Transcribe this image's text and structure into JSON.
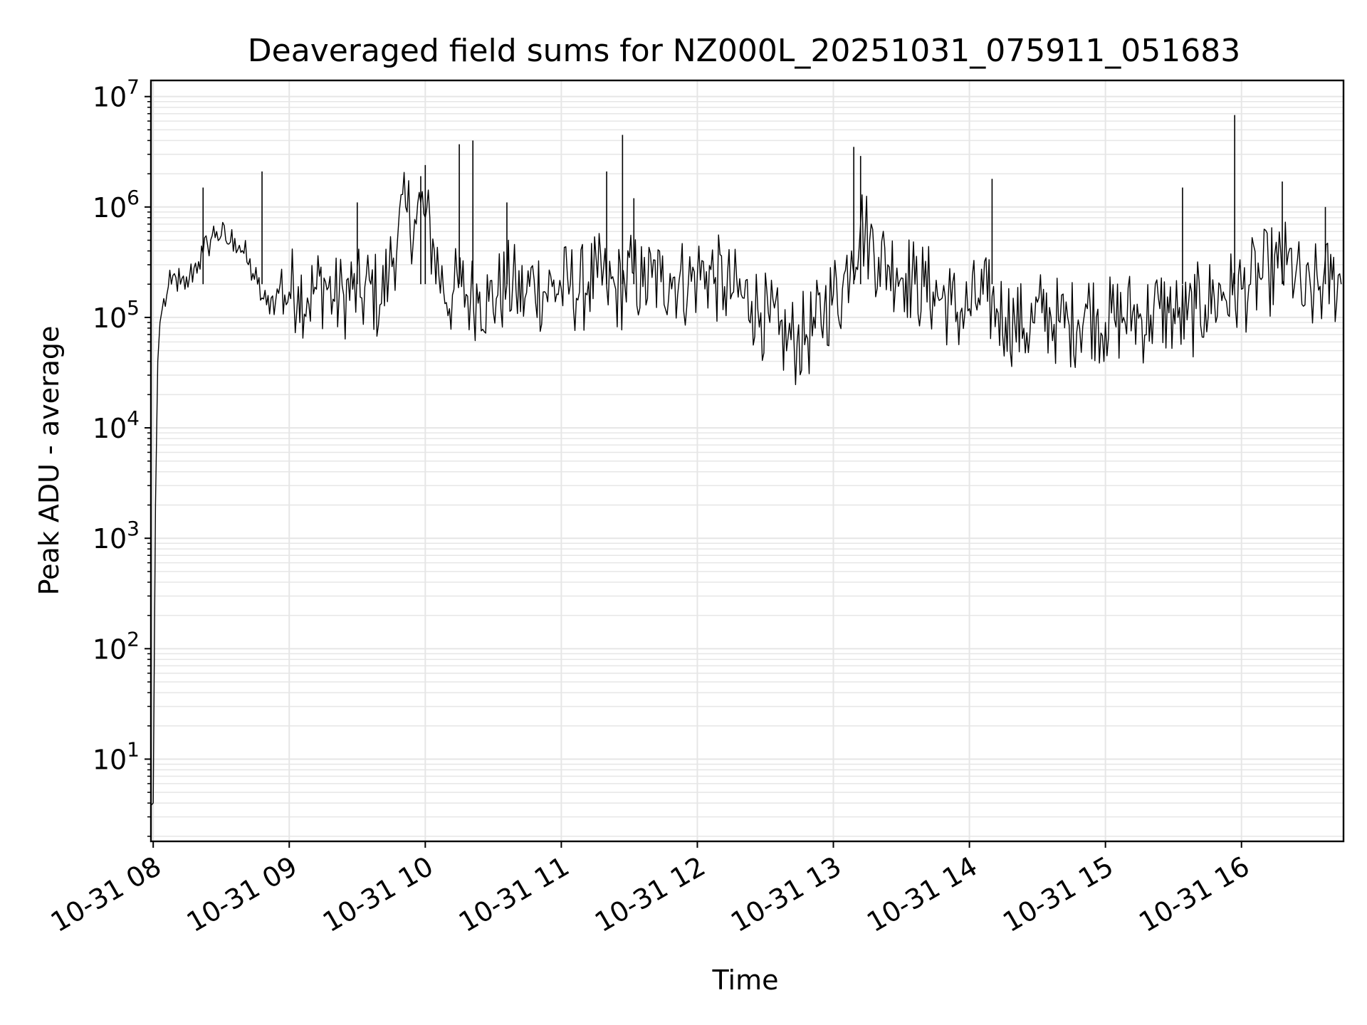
{
  "chart_data": {
    "type": "line",
    "title": "Deaveraged field sums for NZ000L_20251031_075911_051683",
    "xlabel": "Time",
    "ylabel": "Peak ADU - average",
    "x_scale": "time",
    "y_scale": "log",
    "xlim": [
      "2025-10-31 07:59",
      "2025-10-31 16:45"
    ],
    "ylim": [
      1.8,
      14000000
    ],
    "grid": true,
    "legend": "none",
    "line_color": "#000000",
    "x_ticks": [
      {
        "value": "2025-10-31 08:00",
        "label": "10-31 08"
      },
      {
        "value": "2025-10-31 09:00",
        "label": "10-31 09"
      },
      {
        "value": "2025-10-31 10:00",
        "label": "10-31 10"
      },
      {
        "value": "2025-10-31 11:00",
        "label": "10-31 11"
      },
      {
        "value": "2025-10-31 12:00",
        "label": "10-31 12"
      },
      {
        "value": "2025-10-31 13:00",
        "label": "10-31 13"
      },
      {
        "value": "2025-10-31 14:00",
        "label": "10-31 14"
      },
      {
        "value": "2025-10-31 15:00",
        "label": "10-31 15"
      },
      {
        "value": "2025-10-31 16:00",
        "label": "10-31 16"
      }
    ],
    "y_ticks": [
      {
        "value": 10,
        "base": "10",
        "exp": "1"
      },
      {
        "value": 100,
        "base": "10",
        "exp": "2"
      },
      {
        "value": 1000,
        "base": "10",
        "exp": "3"
      },
      {
        "value": 10000,
        "base": "10",
        "exp": "4"
      },
      {
        "value": 100000,
        "base": "10",
        "exp": "5"
      },
      {
        "value": 1000000,
        "base": "10",
        "exp": "6"
      },
      {
        "value": 10000000,
        "base": "10",
        "exp": "7"
      }
    ],
    "series": [
      {
        "x": [
          "2025-10-31 07:59",
          "2025-10-31 08:00",
          "2025-10-31 08:01",
          "2025-10-31 08:02",
          "2025-10-31 08:03",
          "2025-10-31 08:04",
          "2025-10-31 08:06",
          "2025-10-31 08:08",
          "2025-10-31 08:10",
          "2025-10-31 08:12",
          "2025-10-31 08:14",
          "2025-10-31 08:16",
          "2025-10-31 08:18",
          "2025-10-31 08:20",
          "2025-10-31 08:22",
          "2025-10-31 08:24",
          "2025-10-31 08:26",
          "2025-10-31 08:28",
          "2025-10-31 08:30",
          "2025-10-31 08:32",
          "2025-10-31 08:34",
          "2025-10-31 08:36",
          "2025-10-31 08:38",
          "2025-10-31 08:40",
          "2025-10-31 08:42",
          "2025-10-31 08:44",
          "2025-10-31 08:46",
          "2025-10-31 08:48",
          "2025-10-31 08:50",
          "2025-10-31 08:52",
          "2025-10-31 08:54",
          "2025-10-31 08:56",
          "2025-10-31 08:58",
          "2025-10-31 09:00",
          "2025-10-31 09:04",
          "2025-10-31 09:08",
          "2025-10-31 09:12",
          "2025-10-31 09:16",
          "2025-10-31 09:20",
          "2025-10-31 09:24",
          "2025-10-31 09:28",
          "2025-10-31 09:32",
          "2025-10-31 09:36",
          "2025-10-31 09:40",
          "2025-10-31 09:44",
          "2025-10-31 09:48",
          "2025-10-31 09:52",
          "2025-10-31 09:56",
          "2025-10-31 09:58",
          "2025-10-31 10:00",
          "2025-10-31 10:04",
          "2025-10-31 10:08",
          "2025-10-31 10:12",
          "2025-10-31 10:16",
          "2025-10-31 10:20",
          "2025-10-31 10:24",
          "2025-10-31 10:28",
          "2025-10-31 10:32",
          "2025-10-31 10:36",
          "2025-10-31 10:40",
          "2025-10-31 10:44",
          "2025-10-31 10:48",
          "2025-10-31 10:52",
          "2025-10-31 10:56",
          "2025-10-31 11:00",
          "2025-10-31 11:04",
          "2025-10-31 11:08",
          "2025-10-31 11:12",
          "2025-10-31 11:16",
          "2025-10-31 11:20",
          "2025-10-31 11:24",
          "2025-10-31 11:28",
          "2025-10-31 11:32",
          "2025-10-31 11:36",
          "2025-10-31 11:40",
          "2025-10-31 11:44",
          "2025-10-31 11:48",
          "2025-10-31 11:52",
          "2025-10-31 11:56",
          "2025-10-31 12:00",
          "2025-10-31 12:04",
          "2025-10-31 12:08",
          "2025-10-31 12:12",
          "2025-10-31 12:16",
          "2025-10-31 12:20",
          "2025-10-31 12:24",
          "2025-10-31 12:28",
          "2025-10-31 12:32",
          "2025-10-31 12:36",
          "2025-10-31 12:40",
          "2025-10-31 12:44",
          "2025-10-31 12:48",
          "2025-10-31 12:52",
          "2025-10-31 12:56",
          "2025-10-31 13:00",
          "2025-10-31 13:04",
          "2025-10-31 13:08",
          "2025-10-31 13:12",
          "2025-10-31 13:16",
          "2025-10-31 13:20",
          "2025-10-31 13:24",
          "2025-10-31 13:28",
          "2025-10-31 13:32",
          "2025-10-31 13:36",
          "2025-10-31 13:40",
          "2025-10-31 13:44",
          "2025-10-31 13:48",
          "2025-10-31 13:52",
          "2025-10-31 13:56",
          "2025-10-31 14:00",
          "2025-10-31 14:04",
          "2025-10-31 14:08",
          "2025-10-31 14:12",
          "2025-10-31 14:16",
          "2025-10-31 14:20",
          "2025-10-31 14:24",
          "2025-10-31 14:28",
          "2025-10-31 14:32",
          "2025-10-31 14:36",
          "2025-10-31 14:40",
          "2025-10-31 14:44",
          "2025-10-31 14:48",
          "2025-10-31 14:52",
          "2025-10-31 14:56",
          "2025-10-31 15:00",
          "2025-10-31 15:04",
          "2025-10-31 15:08",
          "2025-10-31 15:12",
          "2025-10-31 15:16",
          "2025-10-31 15:20",
          "2025-10-31 15:24",
          "2025-10-31 15:28",
          "2025-10-31 15:32",
          "2025-10-31 15:36",
          "2025-10-31 15:40",
          "2025-10-31 15:44",
          "2025-10-31 15:48",
          "2025-10-31 15:52",
          "2025-10-31 15:56",
          "2025-10-31 16:00",
          "2025-10-31 16:04",
          "2025-10-31 16:08",
          "2025-10-31 16:12",
          "2025-10-31 16:16",
          "2025-10-31 16:20",
          "2025-10-31 16:24",
          "2025-10-31 16:28",
          "2025-10-31 16:32",
          "2025-10-31 16:36",
          "2025-10-31 16:40",
          "2025-10-31 16:44"
        ],
        "y": [
          3.8,
          4,
          2000,
          40000,
          90000,
          120000,
          160000,
          200000,
          230000,
          200000,
          180000,
          230000,
          280000,
          320000,
          380000,
          450000,
          550000,
          600000,
          550000,
          500000,
          480000,
          520000,
          450000,
          380000,
          300000,
          250000,
          200000,
          150000,
          130000,
          150000,
          140000,
          200000,
          160000,
          170000,
          190000,
          150000,
          180000,
          210000,
          140000,
          160000,
          180000,
          150000,
          200000,
          130000,
          260000,
          600000,
          900000,
          700000,
          1100000,
          800000,
          400000,
          180000,
          160000,
          190000,
          150000,
          170000,
          140000,
          160000,
          200000,
          180000,
          150000,
          220000,
          170000,
          190000,
          180000,
          200000,
          170000,
          210000,
          230000,
          190000,
          180000,
          200000,
          250000,
          190000,
          230000,
          210000,
          250000,
          220000,
          200000,
          240000,
          260000,
          230000,
          190000,
          170000,
          150000,
          140000,
          110000,
          90000,
          70000,
          65000,
          60000,
          70000,
          80000,
          120000,
          160000,
          180000,
          400000,
          700000,
          500000,
          350000,
          300000,
          280000,
          250000,
          200000,
          190000,
          170000,
          150000,
          130000,
          110000,
          120000,
          150000,
          140000,
          120000,
          100000,
          90000,
          80000,
          90000,
          110000,
          100000,
          90000,
          85000,
          95000,
          120000,
          100000,
          90000,
          95000,
          100000,
          110000,
          95000,
          105000,
          120000,
          110000,
          100000,
          95000,
          120000,
          130000,
          150000,
          170000,
          160000,
          180000,
          200000,
          230000,
          260000,
          280000,
          300000,
          250000,
          130000,
          180000,
          200000,
          220000,
          200000
        ],
        "spikes": [
          {
            "x": "2025-10-31 08:22",
            "y": 1500000
          },
          {
            "x": "2025-10-31 08:48",
            "y": 2100000
          },
          {
            "x": "2025-10-31 09:30",
            "y": 1100000
          },
          {
            "x": "2025-10-31 09:58",
            "y": 1900000
          },
          {
            "x": "2025-10-31 10:00",
            "y": 2400000
          },
          {
            "x": "2025-10-31 10:15",
            "y": 3700000
          },
          {
            "x": "2025-10-31 10:21",
            "y": 4000000
          },
          {
            "x": "2025-10-31 10:36",
            "y": 1100000
          },
          {
            "x": "2025-10-31 11:20",
            "y": 2100000
          },
          {
            "x": "2025-10-31 11:27",
            "y": 4500000
          },
          {
            "x": "2025-10-31 11:32",
            "y": 1200000
          },
          {
            "x": "2025-10-31 13:09",
            "y": 3500000
          },
          {
            "x": "2025-10-31 13:12",
            "y": 2900000
          },
          {
            "x": "2025-10-31 14:10",
            "y": 1800000
          },
          {
            "x": "2025-10-31 15:34",
            "y": 1500000
          },
          {
            "x": "2025-10-31 15:57",
            "y": 6800000
          },
          {
            "x": "2025-10-31 16:18",
            "y": 1700000
          },
          {
            "x": "2025-10-31 16:37",
            "y": 1000000
          }
        ]
      }
    ]
  }
}
